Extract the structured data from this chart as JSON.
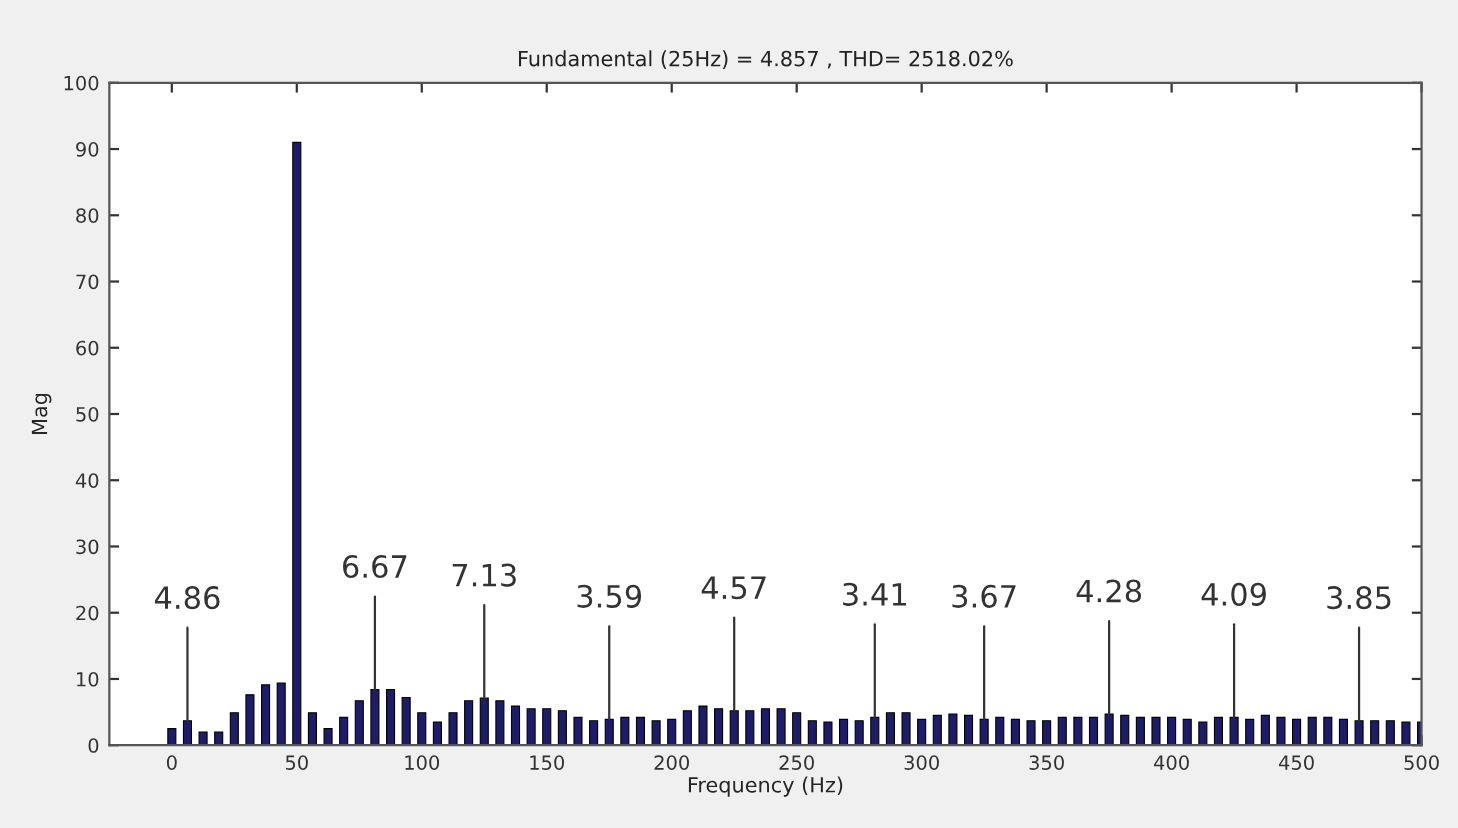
{
  "chart_data": {
    "type": "bar",
    "title": "Fundamental (25Hz) = 4.857 , THD= 2518.02%",
    "xlabel": "Frequency (Hz)",
    "ylabel": "Mag",
    "x": [
      0,
      6.25,
      12.5,
      18.75,
      25,
      31.25,
      37.5,
      43.75,
      50,
      56.25,
      62.5,
      68.75,
      75,
      81.25,
      87.5,
      93.75,
      100,
      106.25,
      112.5,
      118.75,
      125,
      131.25,
      137.5,
      143.75,
      150,
      156.25,
      162.5,
      168.75,
      175,
      181.25,
      187.5,
      193.75,
      200,
      206.25,
      212.5,
      218.75,
      225,
      231.25,
      237.5,
      243.75,
      250,
      256.25,
      262.5,
      268.75,
      275,
      281.25,
      287.5,
      293.75,
      300,
      306.25,
      312.5,
      318.75,
      325,
      331.25,
      337.5,
      343.75,
      350,
      356.25,
      362.5,
      368.75,
      375,
      381.25,
      387.5,
      393.75,
      400,
      406.25,
      412.5,
      418.75,
      425,
      431.25,
      437.5,
      443.75,
      450,
      456.25,
      462.5,
      468.75,
      475,
      481.25,
      487.5,
      493.75,
      500
    ],
    "values": [
      2.5,
      3.7,
      2,
      2,
      4.9,
      7.6,
      9.1,
      9.4,
      91,
      4.9,
      2.5,
      4.2,
      6.7,
      8.4,
      8.4,
      7.2,
      4.9,
      3.5,
      4.9,
      6.7,
      7.1,
      6.7,
      5.9,
      5.5,
      5.5,
      5.2,
      4.2,
      3.7,
      3.9,
      4.2,
      4.2,
      3.7,
      3.9,
      5.2,
      5.9,
      5.5,
      5.2,
      5.2,
      5.5,
      5.5,
      4.9,
      3.7,
      3.5,
      3.9,
      3.7,
      4.2,
      4.9,
      4.9,
      3.9,
      4.5,
      4.7,
      4.5,
      3.9,
      4.2,
      3.9,
      3.7,
      3.7,
      4.2,
      4.2,
      4.2,
      4.7,
      4.5,
      4.2,
      4.2,
      4.2,
      3.9,
      3.5,
      4.2,
      4.2,
      3.9,
      4.5,
      4.2,
      3.9,
      4.2,
      4.2,
      3.9,
      3.7,
      3.7,
      3.7,
      3.5,
      3.5
    ],
    "color": "#1c1c6b",
    "xlim": [
      -25,
      500
    ],
    "xticks": [
      0,
      50,
      100,
      150,
      200,
      250,
      300,
      350,
      400,
      450,
      500
    ],
    "ylim": [
      0,
      100
    ],
    "yticks": [
      0,
      10,
      20,
      30,
      40,
      50,
      60,
      70,
      80,
      90,
      100
    ],
    "grid": false,
    "annotations": [
      {
        "text": "4.86",
        "x": 6.25,
        "y": 3.7
      },
      {
        "text": "6.67",
        "x": 81.25,
        "y": 8.4
      },
      {
        "text": "7.13",
        "x": 125,
        "y": 7.1
      },
      {
        "text": "3.59",
        "x": 175,
        "y": 3.9
      },
      {
        "text": "4.57",
        "x": 225,
        "y": 5.2
      },
      {
        "text": "3.41",
        "x": 281.25,
        "y": 4.2
      },
      {
        "text": "3.67",
        "x": 325,
        "y": 3.9
      },
      {
        "text": "4.28",
        "x": 375,
        "y": 4.7
      },
      {
        "text": "4.09",
        "x": 425,
        "y": 4.2
      },
      {
        "text": "3.85",
        "x": 475,
        "y": 3.7
      }
    ]
  }
}
